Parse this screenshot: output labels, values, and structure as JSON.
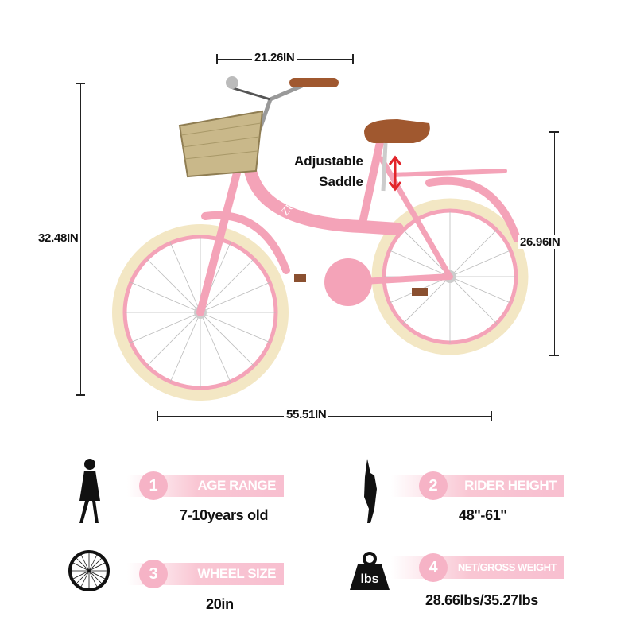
{
  "dimensions": {
    "handlebar_width": "21.26IN",
    "overall_height": "32.48IN",
    "saddle_height": "26.96IN",
    "overall_length": "55.51IN"
  },
  "callout": {
    "line1": "Adjustable",
    "line2": "Saddle"
  },
  "brand_logo": "ZUKKA",
  "colors": {
    "frame": "#f4a3b8",
    "tire": "#f3e7c4",
    "accent": "#f6b3c6",
    "arrow": "#e2242a"
  },
  "specs": [
    {
      "number": "1",
      "label": "AGE RANGE",
      "value": "7-10years old",
      "icon": "girl-silhouette-icon"
    },
    {
      "number": "2",
      "label": "RIDER HEIGHT",
      "value": "48''-61''",
      "icon": "child-reaching-icon"
    },
    {
      "number": "3",
      "label": "WHEEL SIZE",
      "value": "20in",
      "icon": "wheel-icon"
    },
    {
      "number": "4",
      "label": "NET/GROSS WEIGHT",
      "value": "28.66lbs/35.27lbs",
      "icon": "weight-lbs-icon",
      "icon_text": "lbs"
    }
  ]
}
